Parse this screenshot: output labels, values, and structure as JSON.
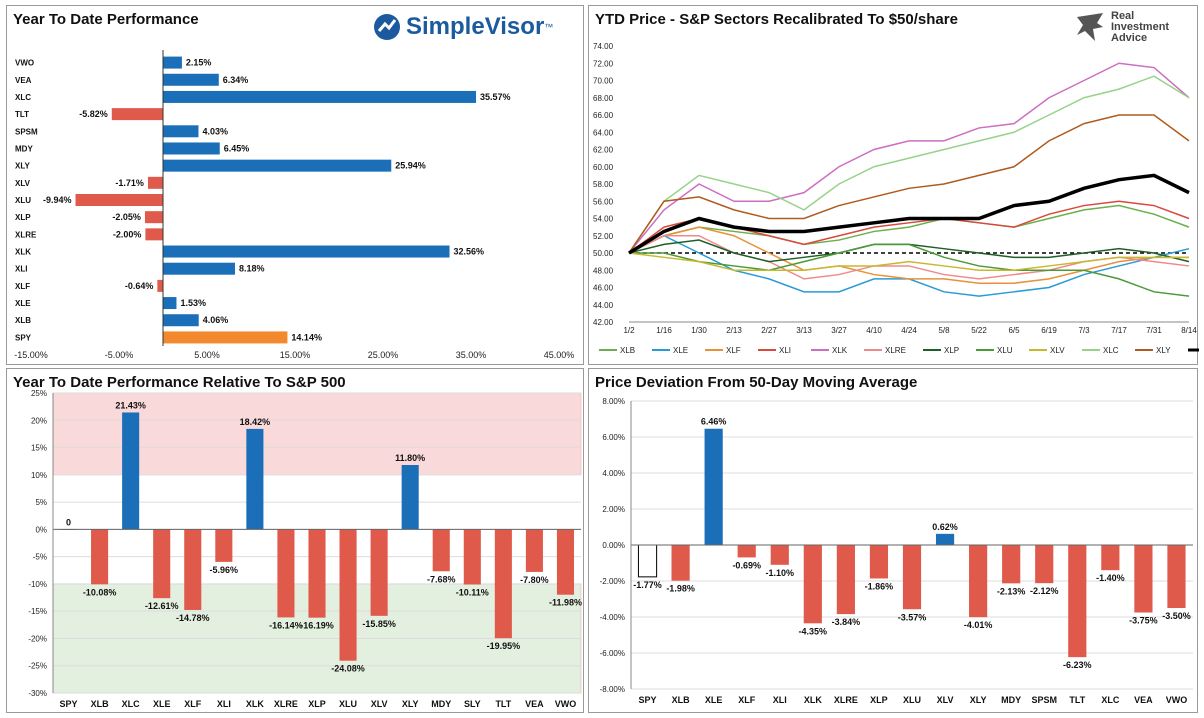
{
  "panels": {
    "ytd": {
      "title": "Year To Date Performance",
      "brand": "SimpleVisor",
      "brand_tm": "™"
    },
    "price": {
      "title": "YTD Price - S&P Sectors Recalibrated To $50/share",
      "brand_lines": [
        "Real",
        "Investment",
        "Advice"
      ]
    },
    "relative": {
      "title": "Year To Date Performance Relative To S&P 500"
    },
    "deviation": {
      "title": "Price Deviation From 50-Day Moving Average"
    }
  },
  "colors": {
    "positive": "#1a6fb8",
    "negative": "#e05a4b",
    "spy_bar": "#f28a2d",
    "upper_band": "#f9d9d9",
    "lower_band": "#e3efdf"
  },
  "chart_data": [
    {
      "id": "ytd",
      "type": "bar",
      "orientation": "horizontal",
      "categories": [
        "VWO",
        "VEA",
        "XLC",
        "TLT",
        "SPSM",
        "MDY",
        "XLY",
        "XLV",
        "XLU",
        "XLP",
        "XLRE",
        "XLK",
        "XLI",
        "XLF",
        "XLE",
        "XLB",
        "SPY"
      ],
      "values": [
        2.15,
        6.34,
        35.57,
        -5.82,
        4.03,
        6.45,
        25.94,
        -1.71,
        -9.94,
        -2.05,
        -2.0,
        32.56,
        8.18,
        -0.64,
        1.53,
        4.06,
        14.14
      ],
      "data_labels": [
        "2.15%",
        "6.34%",
        "35.57%",
        "-5.82%",
        "4.03%",
        "6.45%",
        "25.94%",
        "-1.71%",
        "-9.94%",
        "-2.05%",
        "-2.00%",
        "32.56%",
        "8.18%",
        "-0.64%",
        "1.53%",
        "4.06%",
        "14.14%"
      ],
      "highlight": "SPY",
      "xlim": [
        -15,
        45
      ],
      "xticks": [
        -15,
        -5,
        5,
        15,
        25,
        35,
        45
      ],
      "xtick_labels": [
        "-15.00%",
        "-5.00%",
        "5.00%",
        "15.00%",
        "25.00%",
        "35.00%",
        "45.00%"
      ]
    },
    {
      "id": "price",
      "type": "line",
      "x_tick_labels": [
        "1/2",
        "1/16",
        "1/30",
        "2/13",
        "2/27",
        "3/13",
        "3/27",
        "4/10",
        "4/24",
        "5/8",
        "5/22",
        "6/5",
        "6/19",
        "7/3",
        "7/17",
        "7/31",
        "8/14"
      ],
      "ylim": [
        42,
        74
      ],
      "y_ticks": [
        42,
        44,
        46,
        48,
        50,
        52,
        54,
        56,
        58,
        60,
        62,
        64,
        66,
        68,
        70,
        72,
        74
      ],
      "y_tick_labels": [
        "42.00",
        "44.00",
        "46.00",
        "48.00",
        "50.00",
        "52.00",
        "54.00",
        "56.00",
        "58.00",
        "60.00",
        "62.00",
        "64.00",
        "66.00",
        "68.00",
        "70.00",
        "72.00",
        "74.00"
      ],
      "reference_line": 50,
      "legend": "bottom",
      "series": [
        {
          "name": "XLB",
          "color": "#6ab04c",
          "values": [
            50,
            52,
            53,
            52.5,
            52,
            51,
            51.5,
            52.5,
            53,
            54,
            53.5,
            53,
            54,
            55,
            55.5,
            54.5,
            53
          ]
        },
        {
          "name": "XLE",
          "color": "#2a9ad6",
          "values": [
            50,
            52,
            50,
            48,
            47,
            45.5,
            45.5,
            47,
            47,
            45.5,
            45,
            45.5,
            46,
            47.5,
            48.5,
            49.5,
            50.5
          ]
        },
        {
          "name": "XLF",
          "color": "#e8913a",
          "values": [
            50,
            52,
            53,
            52,
            50,
            48,
            48.5,
            47.5,
            47,
            47,
            46.5,
            46.5,
            47,
            48,
            49,
            49.5,
            49.5
          ]
        },
        {
          "name": "XLI",
          "color": "#d9483b",
          "values": [
            50,
            53,
            54,
            53,
            52,
            51,
            52,
            53,
            53.5,
            54,
            53.5,
            53,
            54.5,
            55.5,
            56,
            55.5,
            54
          ]
        },
        {
          "name": "XLK",
          "color": "#cc6fc0",
          "values": [
            50,
            55,
            58,
            56,
            56,
            57,
            60,
            62,
            63,
            63,
            64.5,
            65,
            68,
            70,
            72,
            71.5,
            68
          ]
        },
        {
          "name": "XLRE",
          "color": "#f08a8a",
          "values": [
            50,
            52,
            52,
            50,
            49,
            47,
            47.5,
            48.5,
            48.5,
            47.5,
            47,
            47.5,
            48,
            49,
            49.5,
            49,
            48.5
          ]
        },
        {
          "name": "XLP",
          "color": "#1f5f27",
          "values": [
            50,
            51,
            51.5,
            50,
            49,
            49.5,
            50,
            51,
            51,
            50.5,
            50,
            49.5,
            49.5,
            50,
            50.5,
            50,
            49
          ]
        },
        {
          "name": "XLU",
          "color": "#4a9a38",
          "values": [
            50,
            50,
            49,
            48.5,
            48,
            49,
            50,
            51,
            51,
            49.5,
            48.5,
            48,
            48,
            48,
            47,
            45.5,
            45
          ]
        },
        {
          "name": "XLV",
          "color": "#c7b92e",
          "values": [
            50,
            49.5,
            49,
            48,
            48,
            48,
            48.5,
            48.5,
            49,
            48.5,
            48,
            48,
            48.5,
            49,
            49.5,
            49.5,
            49.5
          ]
        },
        {
          "name": "XLC",
          "color": "#98d28a",
          "values": [
            50,
            56,
            59,
            58,
            57,
            55,
            58,
            60,
            61,
            62,
            63,
            64,
            66,
            68,
            69,
            70.5,
            68
          ]
        },
        {
          "name": "XLY",
          "color": "#b05a1d",
          "values": [
            50,
            56,
            56.5,
            55,
            54,
            54,
            55.5,
            56.5,
            57.5,
            58,
            59,
            60,
            63,
            65,
            66,
            66,
            63
          ]
        },
        {
          "name": "SPY",
          "color": "#000000",
          "values": [
            50,
            52.5,
            54,
            53,
            52.5,
            52.5,
            53,
            53.5,
            54,
            54,
            54,
            55.5,
            56,
            57.5,
            58.5,
            59,
            57
          ]
        }
      ]
    },
    {
      "id": "relative",
      "type": "bar",
      "categories": [
        "SPY",
        "XLB",
        "XLC",
        "XLE",
        "XLF",
        "XLI",
        "XLK",
        "XLRE",
        "XLP",
        "XLU",
        "XLV",
        "XLY",
        "MDY",
        "SLY",
        "TLT",
        "VEA",
        "VWO"
      ],
      "values": [
        0,
        -10.08,
        21.43,
        -12.61,
        -14.78,
        -5.96,
        18.42,
        -16.14,
        -16.19,
        -24.08,
        -15.85,
        11.8,
        -7.68,
        -10.11,
        -19.95,
        -7.8,
        -11.98
      ],
      "data_labels": [
        "0",
        "-10.08%",
        "21.43%",
        "-12.61%",
        "-14.78%",
        "-5.96%",
        "18.42%",
        "-16.14%",
        "-16.19%",
        "-24.08%",
        "-15.85%",
        "11.80%",
        "-7.68%",
        "-10.11%",
        "-19.95%",
        "-7.80%",
        "-11.98%"
      ],
      "ylim": [
        -30,
        25
      ],
      "y_ticks": [
        -30,
        -25,
        -20,
        -15,
        -10,
        -5,
        0,
        5,
        10,
        15,
        20,
        25
      ],
      "y_tick_labels": [
        "-30%",
        "-25%",
        "-20%",
        "-15%",
        "-10%",
        "-5%",
        "0%",
        "5%",
        "10%",
        "15%",
        "20%",
        "25%"
      ],
      "bands": [
        {
          "from": 10,
          "to": 25,
          "color": "upper_band"
        },
        {
          "from": -30,
          "to": -10,
          "color": "lower_band"
        }
      ]
    },
    {
      "id": "deviation",
      "type": "bar",
      "categories": [
        "SPY",
        "XLB",
        "XLE",
        "XLF",
        "XLI",
        "XLK",
        "XLRE",
        "XLP",
        "XLU",
        "XLV",
        "XLY",
        "MDY",
        "SPSM",
        "TLT",
        "XLC",
        "VEA",
        "VWO"
      ],
      "values": [
        -1.77,
        -1.98,
        6.46,
        -0.69,
        -1.1,
        -4.35,
        -3.84,
        -1.86,
        -3.57,
        0.62,
        -4.01,
        -2.13,
        -2.12,
        -6.23,
        -1.4,
        -3.75,
        -3.5
      ],
      "data_labels": [
        "-1.77%",
        "-1.98%",
        "6.46%",
        "-0.69%",
        "-1.10%",
        "-4.35%",
        "-3.84%",
        "-1.86%",
        "-3.57%",
        "0.62%",
        "-4.01%",
        "-2.13%",
        "-2.12%",
        "-6.23%",
        "-1.40%",
        "-3.75%",
        "-3.50%"
      ],
      "highlight": "SPY",
      "ylim": [
        -8,
        8
      ],
      "y_ticks": [
        -8,
        -6,
        -4,
        -2,
        0,
        2,
        4,
        6,
        8
      ],
      "y_tick_labels": [
        "-8.00%",
        "-6.00%",
        "-4.00%",
        "-2.00%",
        "0.00%",
        "2.00%",
        "4.00%",
        "6.00%",
        "8.00%"
      ]
    }
  ]
}
